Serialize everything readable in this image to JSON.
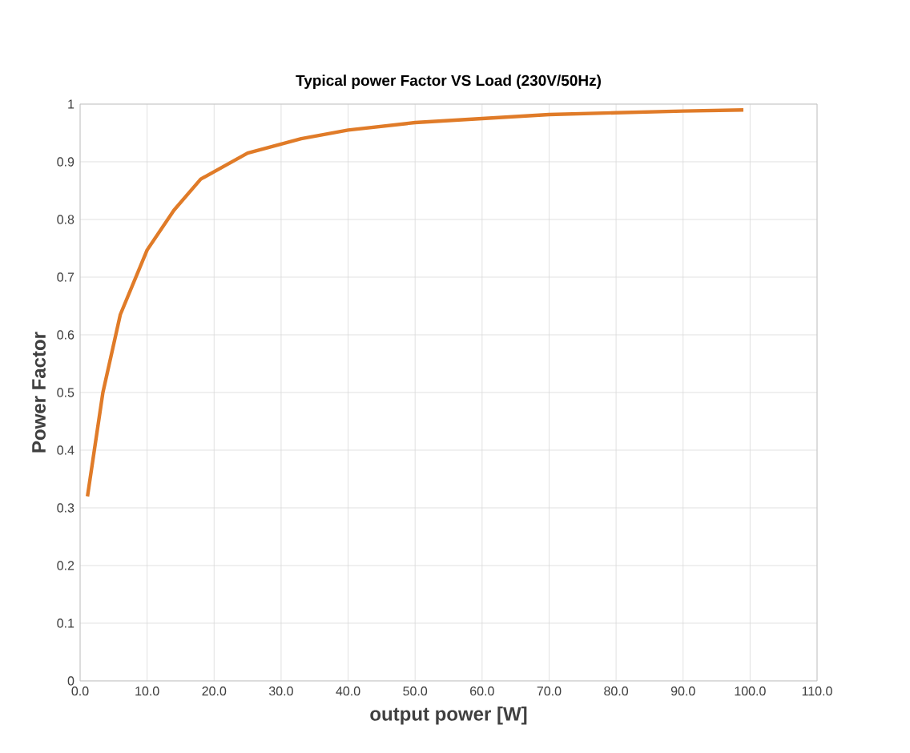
{
  "chart_data": {
    "type": "line",
    "title": "Typical power Factor VS Load (230V/50Hz)",
    "xlabel": "output power [W]",
    "ylabel": "Power Factor",
    "x": [
      1.1,
      3.4,
      6,
      10,
      14,
      18,
      25,
      33,
      40,
      50,
      60,
      70,
      80,
      90,
      99
    ],
    "series": [
      {
        "color": "#e07b28",
        "values": [
          0.32,
          0.5,
          0.635,
          0.747,
          0.816,
          0.87,
          0.915,
          0.94,
          0.955,
          0.968,
          0.975,
          0.982,
          0.985,
          0.988,
          0.99
        ]
      }
    ],
    "xlim": [
      0,
      110
    ],
    "ylim": [
      0,
      1
    ],
    "xticks": [
      {
        "value": 0,
        "label": "0.0"
      },
      {
        "value": 10,
        "label": "10.0"
      },
      {
        "value": 20,
        "label": "20.0"
      },
      {
        "value": 30,
        "label": "30.0"
      },
      {
        "value": 40,
        "label": "40.0"
      },
      {
        "value": 50,
        "label": "50.0"
      },
      {
        "value": 60,
        "label": "60.0"
      },
      {
        "value": 70,
        "label": "70.0"
      },
      {
        "value": 80,
        "label": "80.0"
      },
      {
        "value": 90,
        "label": "90.0"
      },
      {
        "value": 100,
        "label": "100.0"
      },
      {
        "value": 110,
        "label": "110.0"
      }
    ],
    "yticks": [
      0,
      0.1,
      0.2,
      0.3,
      0.4,
      0.5,
      0.6,
      0.7,
      0.8,
      0.9,
      1
    ],
    "grid": true,
    "marker": "none",
    "line_style": "solid"
  }
}
